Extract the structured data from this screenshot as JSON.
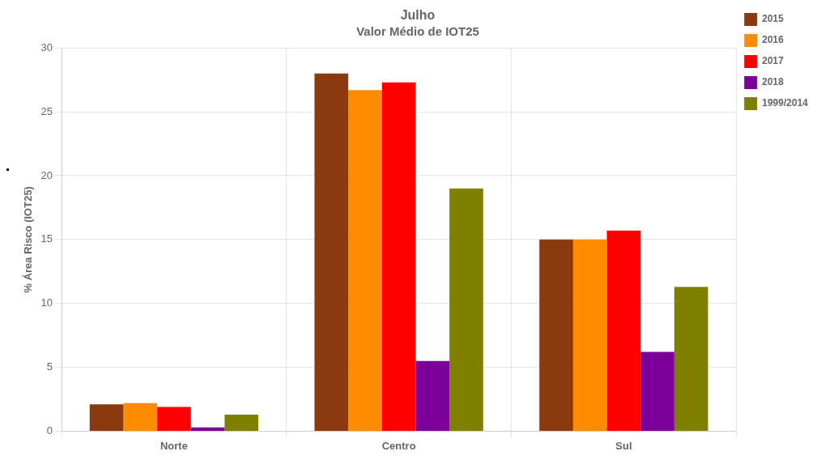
{
  "chart_data": {
    "type": "bar",
    "title": "Julho",
    "subtitle": "Valor Médio de IOT25",
    "ylabel": "% Área Risco (IOT25)",
    "categories": [
      "Norte",
      "Centro",
      "Sul"
    ],
    "series": [
      {
        "name": "2015",
        "color": "#8B3A0F",
        "values": [
          2.1,
          28.0,
          15.0
        ]
      },
      {
        "name": "2016",
        "color": "#FF8C00",
        "values": [
          2.2,
          26.7,
          15.0
        ]
      },
      {
        "name": "2017",
        "color": "#FF0000",
        "values": [
          1.9,
          27.3,
          15.7
        ]
      },
      {
        "name": "2018",
        "color": "#7B0099",
        "values": [
          0.3,
          5.5,
          6.2
        ]
      },
      {
        "name": "1999/2014",
        "color": "#808000",
        "values": [
          1.3,
          19.0,
          11.3
        ]
      }
    ],
    "ylim": [
      0,
      30
    ],
    "yticks": [
      0,
      5,
      10,
      15,
      20,
      25,
      30
    ],
    "grid": true,
    "legend": "right",
    "annotations": [
      "·"
    ]
  }
}
